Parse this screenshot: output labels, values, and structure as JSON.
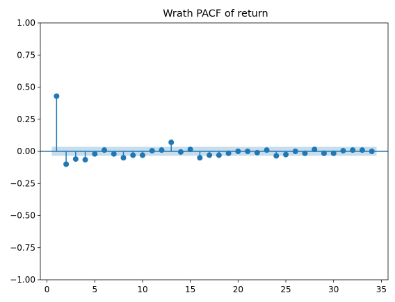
{
  "chart_data": {
    "type": "scatter",
    "subtype": "stem",
    "title": "Wrath PACF of return",
    "xlabel": "",
    "ylabel": "",
    "xlim": [
      -0.7,
      35.7
    ],
    "ylim": [
      -1.0,
      1.0
    ],
    "x_ticks": [
      0,
      5,
      10,
      15,
      20,
      25,
      30,
      35
    ],
    "x_tick_labels": [
      "0",
      "5",
      "10",
      "15",
      "20",
      "25",
      "30",
      "35"
    ],
    "y_ticks": [
      1.0,
      0.75,
      0.5,
      0.25,
      0.0,
      -0.25,
      -0.5,
      -0.75,
      -1.0
    ],
    "y_tick_labels": [
      "1.00",
      "0.75",
      "0.50",
      "0.25",
      "0.00",
      "−0.25",
      "−0.50",
      "−0.75",
      "−1.00"
    ],
    "grid": false,
    "legend": "none",
    "confidence_band": {
      "lower": -0.035,
      "upper": 0.035,
      "x_start": 0.5,
      "x_end": 34.5
    },
    "series": [
      {
        "x": [
          1,
          2,
          3,
          4,
          5,
          6,
          7,
          8,
          9,
          10,
          11,
          12,
          13,
          14,
          15,
          16,
          17,
          18,
          19,
          20,
          21,
          22,
          23,
          24,
          25,
          26,
          27,
          28,
          29,
          30,
          31,
          32,
          33,
          34
        ],
        "values": [
          0.43,
          -0.1,
          -0.06,
          -0.065,
          -0.02,
          0.01,
          -0.02,
          -0.05,
          -0.03,
          -0.03,
          0.005,
          0.01,
          0.07,
          -0.005,
          0.015,
          -0.05,
          -0.03,
          -0.03,
          -0.015,
          0.0,
          0.0,
          -0.01,
          0.01,
          -0.035,
          -0.025,
          0.0,
          -0.015,
          0.015,
          -0.015,
          -0.015,
          0.005,
          0.01,
          0.01,
          0.0
        ]
      }
    ]
  },
  "colors": {
    "series": "#1f77b4",
    "band": "#1f77b4",
    "axis": "#000000"
  }
}
